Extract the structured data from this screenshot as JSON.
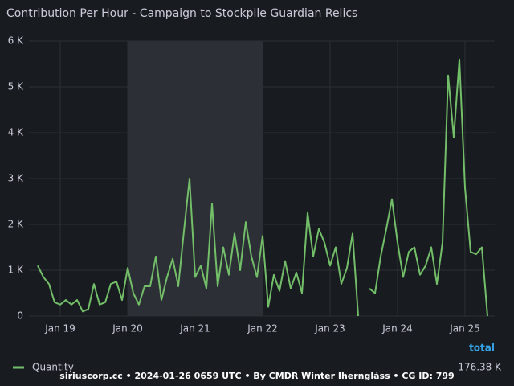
{
  "chart_data": {
    "type": "line",
    "title": "Contribution Per Hour - Campaign to Stockpile Guardian Relics",
    "categories": [
      null,
      null,
      null,
      null,
      "Jan 19",
      null,
      null,
      null,
      null,
      null,
      null,
      null,
      null,
      null,
      null,
      null,
      "Jan 20",
      null,
      null,
      null,
      null,
      null,
      null,
      null,
      null,
      null,
      null,
      null,
      "Jan 21",
      null,
      null,
      null,
      null,
      null,
      null,
      null,
      null,
      null,
      null,
      null,
      "Jan 22",
      null,
      null,
      null,
      null,
      null,
      null,
      null,
      null,
      null,
      null,
      null,
      "Jan 23",
      null,
      null,
      null,
      null,
      null,
      null,
      null,
      null,
      null,
      null,
      null,
      "Jan 24",
      null,
      null,
      null,
      null,
      null,
      null,
      null,
      null,
      null,
      null,
      null,
      "Jan 25",
      null,
      null,
      null,
      null
    ],
    "series": [
      {
        "name": "Quantity",
        "color": "#73bf69",
        "values": [
          1100,
          850,
          700,
          300,
          250,
          350,
          250,
          350,
          100,
          150,
          700,
          250,
          300,
          700,
          750,
          350,
          1050,
          500,
          250,
          650,
          650,
          1300,
          350,
          850,
          1250,
          650,
          1850,
          3000,
          850,
          1100,
          600,
          2450,
          650,
          1500,
          900,
          1800,
          1000,
          2050,
          1300,
          850,
          1750,
          200,
          900,
          550,
          1200,
          600,
          950,
          500,
          2250,
          1300,
          1900,
          1600,
          1100,
          1500,
          700,
          1050,
          1800,
          0,
          null,
          600,
          500,
          1300,
          1900,
          2550,
          1600,
          850,
          1400,
          1500,
          900,
          1100,
          1500,
          700,
          1600,
          5250,
          3900,
          5600,
          2800,
          1400,
          1350,
          1500,
          0
        ]
      }
    ],
    "ylim": [
      0,
      6000
    ],
    "yticks": [
      0,
      {
        "value": 1000,
        "label": "1 K"
      },
      {
        "value": 2000,
        "label": "2 K"
      },
      {
        "value": 3000,
        "label": "3 K"
      },
      {
        "value": 4000,
        "label": "4 K"
      },
      {
        "value": 5000,
        "label": "5 K"
      },
      {
        "value": 6000,
        "label": "6 K"
      }
    ],
    "grid": true,
    "highlight": {
      "from": "Jan 20",
      "to": "Jan 22"
    },
    "legend": {
      "header": "total",
      "values": [
        "176.38 K"
      ]
    },
    "footer": "siriuscorp.cc • 2024-01-26 0659 UTC • By CMDR Winter Iherngláss • CG ID: 799"
  }
}
